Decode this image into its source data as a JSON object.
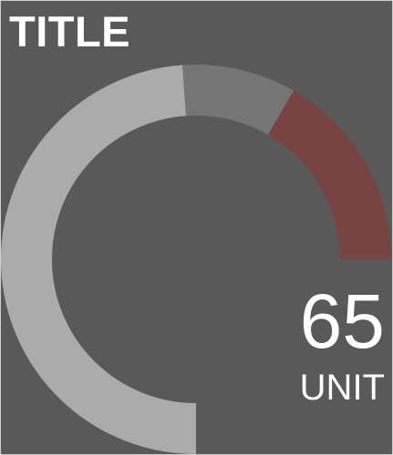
{
  "widget": {
    "title": "TITLE",
    "value": "65",
    "unit": "UNIT"
  },
  "gauge": {
    "level_fraction": 0.65,
    "colors": {
      "background": "#595959",
      "track": "#ababab",
      "marker": "#757575",
      "alert": "#774343"
    }
  }
}
